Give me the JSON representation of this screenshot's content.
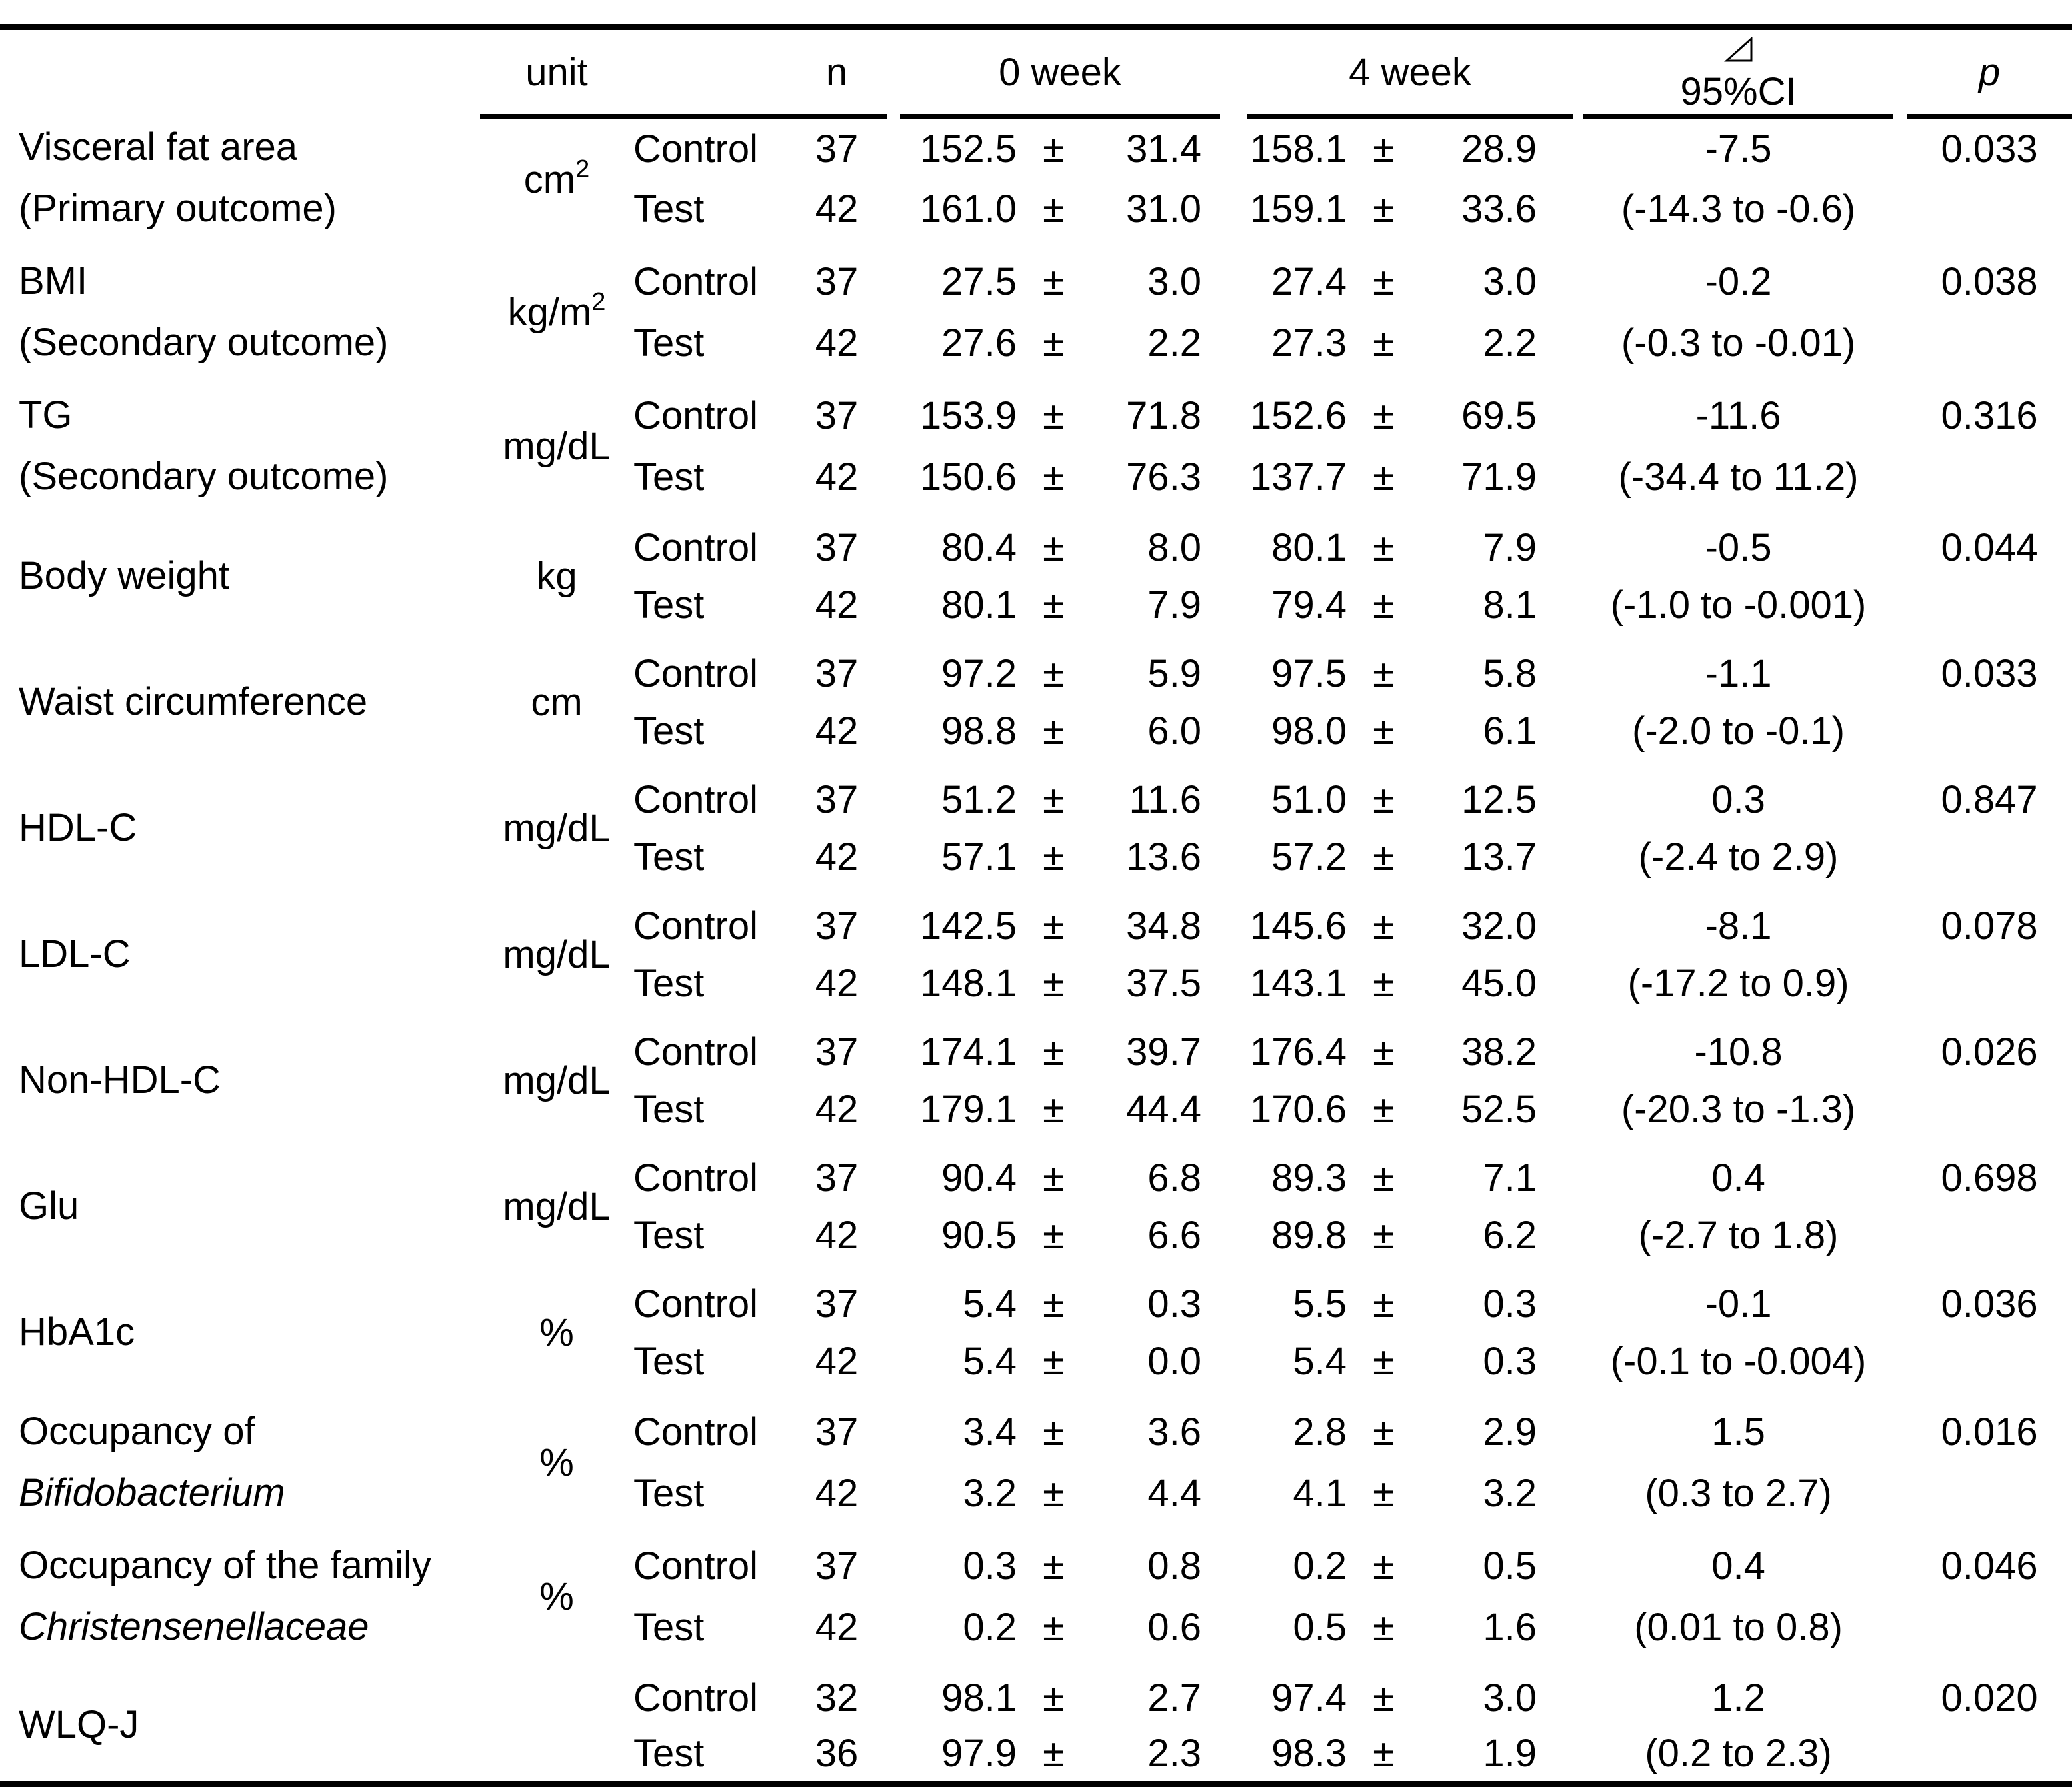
{
  "colors": {
    "text": "#000000",
    "background": "#ffffff",
    "rule": "#000000"
  },
  "header": {
    "unit": "unit",
    "n": "n",
    "week0": "0 week",
    "week4": "4 week",
    "delta_symbol": "⊿",
    "ci": "95%CI",
    "p": "p",
    "plus_minus": "±"
  },
  "groups": {
    "control": "Control",
    "test": "Test"
  },
  "rows": [
    {
      "name_line1": "Visceral fat area",
      "name_line2": "(Primary outcome)",
      "unit_base": "cm",
      "unit_sup": "2",
      "control": {
        "n": "37",
        "w0_mean": "152.5",
        "w0_sd": "31.4",
        "w4_mean": "158.1",
        "w4_sd": "28.9"
      },
      "test": {
        "n": "42",
        "w0_mean": "161.0",
        "w0_sd": "31.0",
        "w4_mean": "159.1",
        "w4_sd": "33.6"
      },
      "ci_point": "-7.5",
      "ci_range": "(-14.3 to -0.6)",
      "p": "0.033"
    },
    {
      "name_line1": "BMI",
      "name_line2": "(Secondary outcome)",
      "unit_base": "kg/m",
      "unit_sup": "2",
      "control": {
        "n": "37",
        "w0_mean": "27.5",
        "w0_sd": "3.0",
        "w4_mean": "27.4",
        "w4_sd": "3.0"
      },
      "test": {
        "n": "42",
        "w0_mean": "27.6",
        "w0_sd": "2.2",
        "w4_mean": "27.3",
        "w4_sd": "2.2"
      },
      "ci_point": "-0.2",
      "ci_range": "(-0.3 to -0.01)",
      "p": "0.038"
    },
    {
      "name_line1": "TG",
      "name_line2": "(Secondary outcome)",
      "unit_base": "mg/dL",
      "unit_sup": "",
      "control": {
        "n": "37",
        "w0_mean": "153.9",
        "w0_sd": "71.8",
        "w4_mean": "152.6",
        "w4_sd": "69.5"
      },
      "test": {
        "n": "42",
        "w0_mean": "150.6",
        "w0_sd": "76.3",
        "w4_mean": "137.7",
        "w4_sd": "71.9"
      },
      "ci_point": "-11.6",
      "ci_range": "(-34.4 to 11.2)",
      "p": "0.316"
    },
    {
      "name_line1": "Body weight",
      "name_line2": "",
      "unit_base": "kg",
      "unit_sup": "",
      "control": {
        "n": "37",
        "w0_mean": "80.4",
        "w0_sd": "8.0",
        "w4_mean": "80.1",
        "w4_sd": "7.9"
      },
      "test": {
        "n": "42",
        "w0_mean": "80.1",
        "w0_sd": "7.9",
        "w4_mean": "79.4",
        "w4_sd": "8.1"
      },
      "ci_point": "-0.5",
      "ci_range": "(-1.0 to -0.001)",
      "p": "0.044"
    },
    {
      "name_line1": "Waist circumference",
      "name_line2": "",
      "unit_base": "cm",
      "unit_sup": "",
      "control": {
        "n": "37",
        "w0_mean": "97.2",
        "w0_sd": "5.9",
        "w4_mean": "97.5",
        "w4_sd": "5.8"
      },
      "test": {
        "n": "42",
        "w0_mean": "98.8",
        "w0_sd": "6.0",
        "w4_mean": "98.0",
        "w4_sd": "6.1"
      },
      "ci_point": "-1.1",
      "ci_range": "(-2.0 to -0.1)",
      "p": "0.033"
    },
    {
      "name_line1": "HDL-C",
      "name_line2": "",
      "unit_base": "mg/dL",
      "unit_sup": "",
      "control": {
        "n": "37",
        "w0_mean": "51.2",
        "w0_sd": "11.6",
        "w4_mean": "51.0",
        "w4_sd": "12.5"
      },
      "test": {
        "n": "42",
        "w0_mean": "57.1",
        "w0_sd": "13.6",
        "w4_mean": "57.2",
        "w4_sd": "13.7"
      },
      "ci_point": "0.3",
      "ci_range": "(-2.4 to 2.9)",
      "p": "0.847"
    },
    {
      "name_line1": "LDL-C",
      "name_line2": "",
      "unit_base": "mg/dL",
      "unit_sup": "",
      "control": {
        "n": "37",
        "w0_mean": "142.5",
        "w0_sd": "34.8",
        "w4_mean": "145.6",
        "w4_sd": "32.0"
      },
      "test": {
        "n": "42",
        "w0_mean": "148.1",
        "w0_sd": "37.5",
        "w4_mean": "143.1",
        "w4_sd": "45.0"
      },
      "ci_point": "-8.1",
      "ci_range": "(-17.2 to 0.9)",
      "p": "0.078"
    },
    {
      "name_line1": "Non-HDL-C",
      "name_line2": "",
      "unit_base": "mg/dL",
      "unit_sup": "",
      "control": {
        "n": "37",
        "w0_mean": "174.1",
        "w0_sd": "39.7",
        "w4_mean": "176.4",
        "w4_sd": "38.2"
      },
      "test": {
        "n": "42",
        "w0_mean": "179.1",
        "w0_sd": "44.4",
        "w4_mean": "170.6",
        "w4_sd": "52.5"
      },
      "ci_point": "-10.8",
      "ci_range": "(-20.3 to -1.3)",
      "p": "0.026"
    },
    {
      "name_line1": "Glu",
      "name_line2": "",
      "unit_base": "mg/dL",
      "unit_sup": "",
      "control": {
        "n": "37",
        "w0_mean": "90.4",
        "w0_sd": "6.8",
        "w4_mean": "89.3",
        "w4_sd": "7.1"
      },
      "test": {
        "n": "42",
        "w0_mean": "90.5",
        "w0_sd": "6.6",
        "w4_mean": "89.8",
        "w4_sd": "6.2"
      },
      "ci_point": "0.4",
      "ci_range": "(-2.7 to 1.8)",
      "p": "0.698"
    },
    {
      "name_line1": "HbA1c",
      "name_line2": "",
      "unit_base": "%",
      "unit_sup": "",
      "control": {
        "n": "37",
        "w0_mean": "5.4",
        "w0_sd": "0.3",
        "w4_mean": "5.5",
        "w4_sd": "0.3"
      },
      "test": {
        "n": "42",
        "w0_mean": "5.4",
        "w0_sd": "0.0",
        "w4_mean": "5.4",
        "w4_sd": "0.3"
      },
      "ci_point": "-0.1",
      "ci_range": "(-0.1 to -0.004)",
      "p": "0.036"
    },
    {
      "name_line1": "Occupancy of",
      "name_line2": "Bifidobacterium",
      "name_line2_italic": true,
      "unit_base": "%",
      "unit_sup": "",
      "control": {
        "n": "37",
        "w0_mean": "3.4",
        "w0_sd": "3.6",
        "w4_mean": "2.8",
        "w4_sd": "2.9"
      },
      "test": {
        "n": "42",
        "w0_mean": "3.2",
        "w0_sd": "4.4",
        "w4_mean": "4.1",
        "w4_sd": "3.2"
      },
      "ci_point": "1.5",
      "ci_range": "(0.3 to 2.7)",
      "p": "0.016"
    },
    {
      "name_line1": "Occupancy of the family",
      "name_line2": "Christensenellaceae",
      "name_line2_italic": true,
      "unit_base": "%",
      "unit_sup": "",
      "control": {
        "n": "37",
        "w0_mean": "0.3",
        "w0_sd": "0.8",
        "w4_mean": "0.2",
        "w4_sd": "0.5"
      },
      "test": {
        "n": "42",
        "w0_mean": "0.2",
        "w0_sd": "0.6",
        "w4_mean": "0.5",
        "w4_sd": "1.6"
      },
      "ci_point": "0.4",
      "ci_range": "(0.01 to 0.8)",
      "p": "0.046"
    },
    {
      "name_line1": "WLQ-J",
      "name_line2": "",
      "unit_base": "",
      "unit_sup": "",
      "control": {
        "n": "32",
        "w0_mean": "98.1",
        "w0_sd": "2.7",
        "w4_mean": "97.4",
        "w4_sd": "3.0"
      },
      "test": {
        "n": "36",
        "w0_mean": "97.9",
        "w0_sd": "2.3",
        "w4_mean": "98.3",
        "w4_sd": "1.9"
      },
      "ci_point": "1.2",
      "ci_range": "(0.2 to 2.3)",
      "p": "0.020"
    }
  ]
}
